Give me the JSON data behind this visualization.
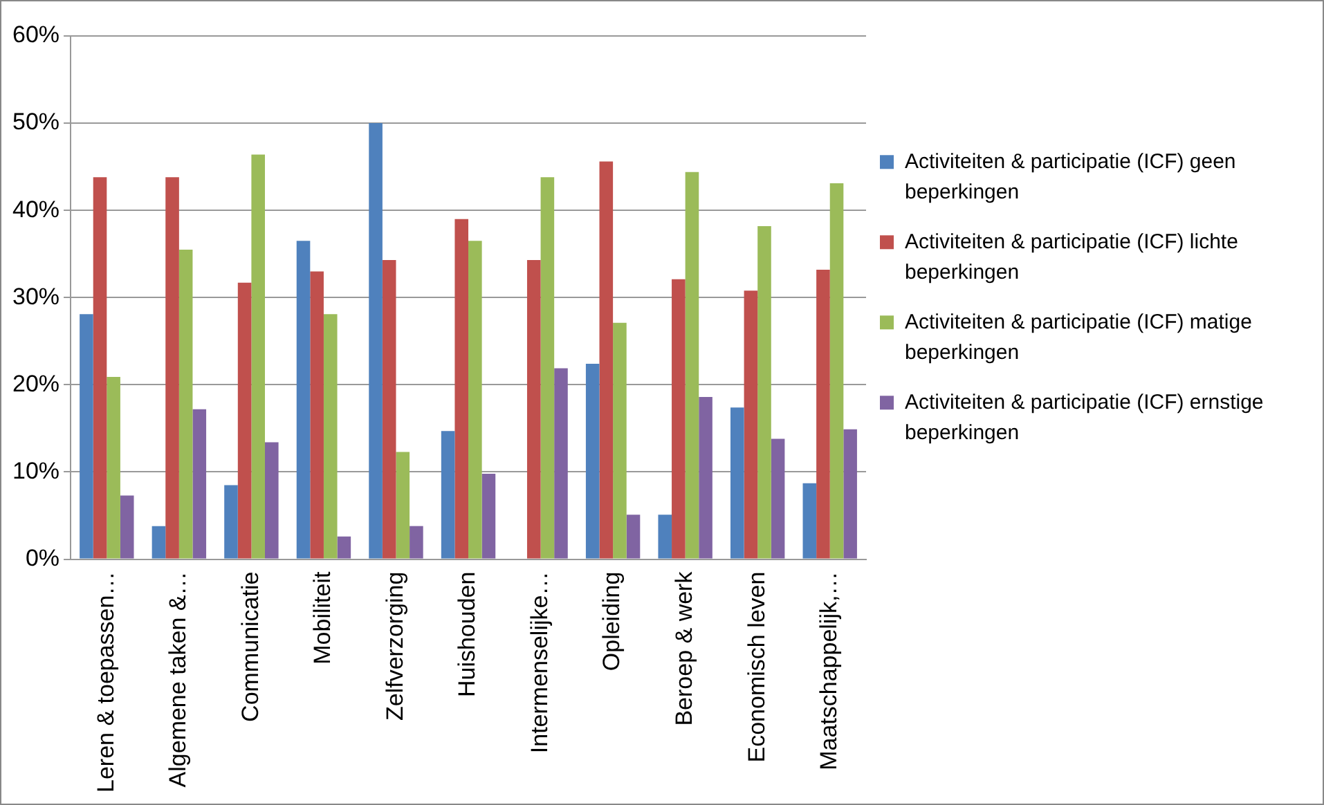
{
  "chart_data": {
    "type": "bar",
    "categories": [
      "Leren & toepassen…",
      "Algemene taken &…",
      "Communicatie",
      "Mobiliteit",
      "Zelfverzorging",
      "Huishouden",
      "Intermenselijke…",
      "Opleiding",
      "Beroep & werk",
      "Economisch leven",
      "Maatschappelijk,…"
    ],
    "series": [
      {
        "name": "Activiteiten & participatie (ICF) geen beperkingen",
        "color": "#4f81bd",
        "values": [
          28.1,
          3.8,
          8.5,
          36.5,
          50.0,
          14.7,
          0,
          22.4,
          5.1,
          17.4,
          8.7
        ]
      },
      {
        "name": "Activiteiten & participatie (ICF) lichte beperkingen",
        "color": "#c0504d",
        "values": [
          43.8,
          43.8,
          31.7,
          33.0,
          34.3,
          39.0,
          34.3,
          45.6,
          32.1,
          30.8,
          33.2
        ]
      },
      {
        "name": "Activiteiten & participatie (ICF) matige beperkingen",
        "color": "#9bbb59",
        "values": [
          20.9,
          35.5,
          46.4,
          28.1,
          12.3,
          36.5,
          43.8,
          27.1,
          44.4,
          38.2,
          43.1
        ]
      },
      {
        "name": "Activiteiten & participatie (ICF) ernstige beperkingen",
        "color": "#8064a2",
        "values": [
          7.3,
          17.2,
          13.4,
          2.6,
          3.8,
          9.8,
          21.9,
          5.1,
          18.6,
          13.8,
          14.9
        ]
      }
    ],
    "ylim": [
      0,
      60
    ],
    "yticks": [
      {
        "value": 0,
        "label": "0%"
      },
      {
        "value": 10,
        "label": "10%"
      },
      {
        "value": 20,
        "label": "20%"
      },
      {
        "value": 30,
        "label": "30%"
      },
      {
        "value": 40,
        "label": "40%"
      },
      {
        "value": 50,
        "label": "50%"
      },
      {
        "value": 60,
        "label": "60%"
      }
    ],
    "grid": "y",
    "legend": "right"
  }
}
